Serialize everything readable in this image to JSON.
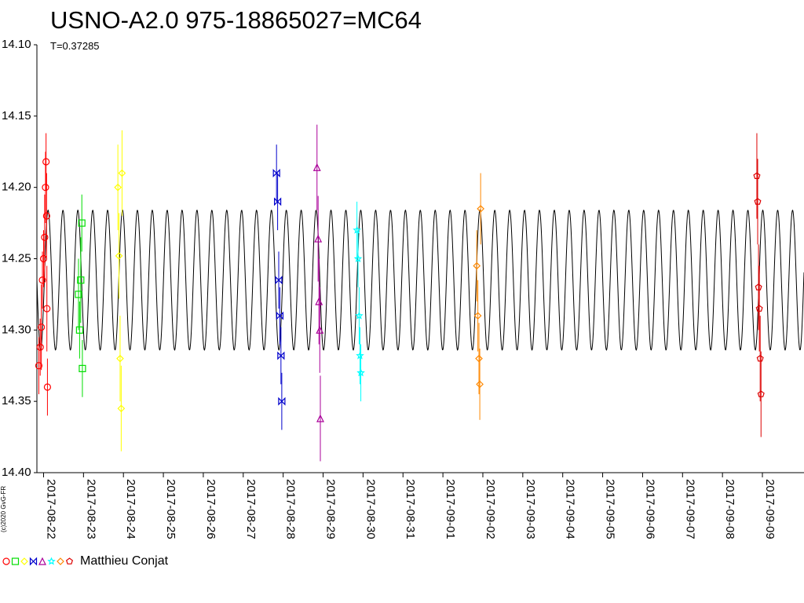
{
  "chart_data": {
    "type": "scatter",
    "title": "USNO-A2.0 975-18865027=MC64",
    "subtitle": "T=0.37285",
    "xlabel": "",
    "ylabel": "",
    "ylim": [
      14.1,
      14.4
    ],
    "y_inverted": true,
    "y_ticks": [
      "14.10",
      "14.15",
      "14.20",
      "14.25",
      "14.30",
      "14.35",
      "14.40"
    ],
    "xlim": [
      "2017-08-21T20:00",
      "2017-09-10T01:00"
    ],
    "x_ticks": [
      "2017-08-22",
      "2017-08-23",
      "2017-08-24",
      "2017-08-25",
      "2017-08-26",
      "2017-08-27",
      "2017-08-28",
      "2017-08-29",
      "2017-08-30",
      "2017-08-31",
      "2017-09-01",
      "2017-09-02",
      "2017-09-03",
      "2017-09-04",
      "2017-09-05",
      "2017-09-06",
      "2017-09-07",
      "2017-09-08",
      "2017-09-09"
    ],
    "model_curve": {
      "period_days": 0.37285,
      "mean": 14.265,
      "amplitude": 0.049
    },
    "grid": false,
    "legend": "bottom-left",
    "series": [
      {
        "color": "#ff0000",
        "marker": "circle",
        "x": [
          "2017-08-21T21:10",
          "2017-08-21T22:00",
          "2017-08-21T22:40",
          "2017-08-21T23:20",
          "2017-08-22T00:00",
          "2017-08-22T00:40",
          "2017-08-22T01:10",
          "2017-08-22T01:30",
          "2017-08-22T01:50",
          "2017-08-22T02:00",
          "2017-08-22T02:20"
        ],
        "y": [
          14.325,
          14.312,
          14.298,
          14.265,
          14.25,
          14.235,
          14.2,
          14.182,
          14.22,
          14.285,
          14.34
        ],
        "errors": [
          0.02,
          0.02,
          0.03,
          0.02,
          0.02,
          0.03,
          0.025,
          0.02,
          0.03,
          0.03,
          0.02
        ]
      },
      {
        "color": "#00dd00",
        "marker": "square",
        "x": [
          "2017-08-22T21:00",
          "2017-08-22T21:40",
          "2017-08-22T22:20",
          "2017-08-22T23:00",
          "2017-08-22T23:20"
        ],
        "y": [
          14.275,
          14.3,
          14.265,
          14.225,
          14.327
        ],
        "errors": [
          0.025,
          0.02,
          0.03,
          0.02,
          0.02
        ]
      },
      {
        "color": "#ffff00",
        "marker": "diamond",
        "x": [
          "2017-08-23T20:40",
          "2017-08-23T21:20",
          "2017-08-23T22:00",
          "2017-08-23T22:40",
          "2017-08-23T23:10"
        ],
        "y": [
          14.2,
          14.248,
          14.32,
          14.355,
          14.19
        ],
        "errors": [
          0.03,
          0.03,
          0.03,
          0.03,
          0.03
        ]
      },
      {
        "color": "#0000cc",
        "marker": "bowtie",
        "x": [
          "2017-08-27T20:00",
          "2017-08-27T20:40",
          "2017-08-27T21:20",
          "2017-08-27T22:00",
          "2017-08-27T22:40",
          "2017-08-27T23:10"
        ],
        "y": [
          14.19,
          14.21,
          14.265,
          14.29,
          14.318,
          14.35
        ],
        "errors": [
          0.02,
          0.02,
          0.02,
          0.02,
          0.02,
          0.02
        ]
      },
      {
        "color": "#aa0099",
        "marker": "triangle",
        "x": [
          "2017-08-28T20:20",
          "2017-08-28T21:00",
          "2017-08-28T21:30",
          "2017-08-28T22:00",
          "2017-08-28T22:20"
        ],
        "y": [
          14.186,
          14.236,
          14.28,
          14.3,
          14.362
        ],
        "errors": [
          0.03,
          0.03,
          0.03,
          0.03,
          0.03
        ]
      },
      {
        "color": "#00ffff",
        "marker": "star",
        "x": [
          "2017-08-29T20:20",
          "2017-08-29T21:00",
          "2017-08-29T21:40",
          "2017-08-29T22:10",
          "2017-08-29T22:40"
        ],
        "y": [
          14.23,
          14.25,
          14.29,
          14.318,
          14.33
        ],
        "errors": [
          0.02,
          0.02,
          0.02,
          0.02,
          0.02
        ]
      },
      {
        "color": "#ff8800",
        "marker": "diamond-cross",
        "x": [
          "2017-09-01T20:20",
          "2017-09-01T21:00",
          "2017-09-01T21:40",
          "2017-09-01T22:10",
          "2017-09-01T22:40"
        ],
        "y": [
          14.255,
          14.29,
          14.32,
          14.338,
          14.215
        ],
        "errors": [
          0.025,
          0.025,
          0.025,
          0.025,
          0.025
        ]
      },
      {
        "color": "#dd0000",
        "marker": "pentagon",
        "x": [
          "2017-09-08T20:40",
          "2017-09-08T21:10",
          "2017-09-08T21:40",
          "2017-09-08T22:10",
          "2017-09-08T22:40",
          "2017-09-08T23:10"
        ],
        "y": [
          14.192,
          14.21,
          14.27,
          14.285,
          14.32,
          14.345
        ],
        "errors": [
          0.03,
          0.03,
          0.03,
          0.03,
          0.03,
          0.03
        ]
      }
    ]
  },
  "legend": {
    "observer": "Matthieu Conjat"
  },
  "copyright": "(c)2020 GvG-FR"
}
